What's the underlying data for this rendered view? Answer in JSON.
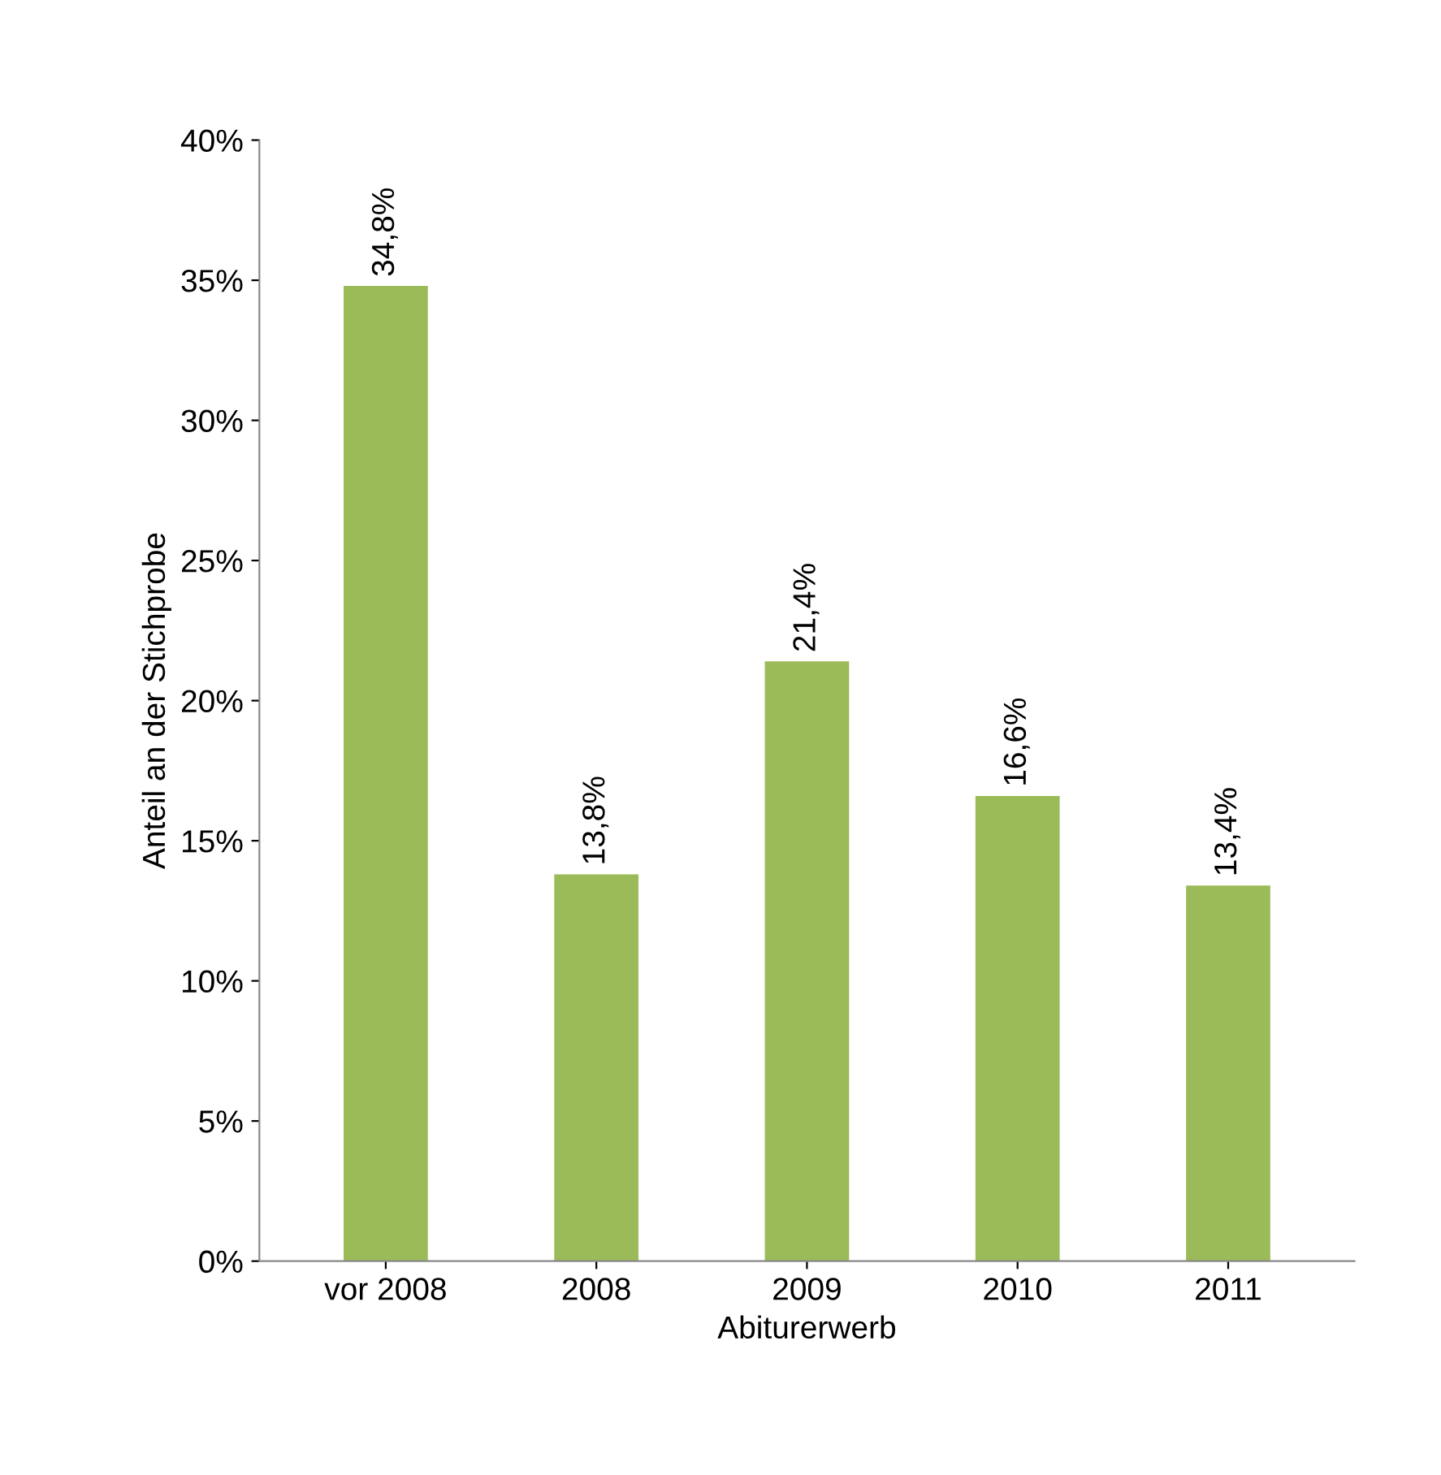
{
  "chart_data": {
    "type": "bar",
    "xlabel": "Abiturerwerb",
    "ylabel": "Anteil an der Stichprobe",
    "categories": [
      "vor 2008",
      "2008",
      "2009",
      "2010",
      "2011"
    ],
    "values": [
      34.8,
      13.8,
      21.4,
      16.6,
      13.4
    ],
    "value_labels": [
      "34,8%",
      "13,8%",
      "21,4%",
      "16,6%",
      "13,4%"
    ],
    "color": "#9bbb59",
    "ylim": [
      0,
      40
    ],
    "yticks": [
      {
        "value": 0,
        "label": "0%"
      },
      {
        "value": 5,
        "label": "5%"
      },
      {
        "value": 10,
        "label": "10%"
      },
      {
        "value": 15,
        "label": "15%"
      },
      {
        "value": 20,
        "label": "20%"
      },
      {
        "value": 25,
        "label": "25%"
      },
      {
        "value": 30,
        "label": "30%"
      },
      {
        "value": 35,
        "label": "35%"
      },
      {
        "value": 40,
        "label": "40%"
      }
    ],
    "grid": false,
    "legend": false
  }
}
